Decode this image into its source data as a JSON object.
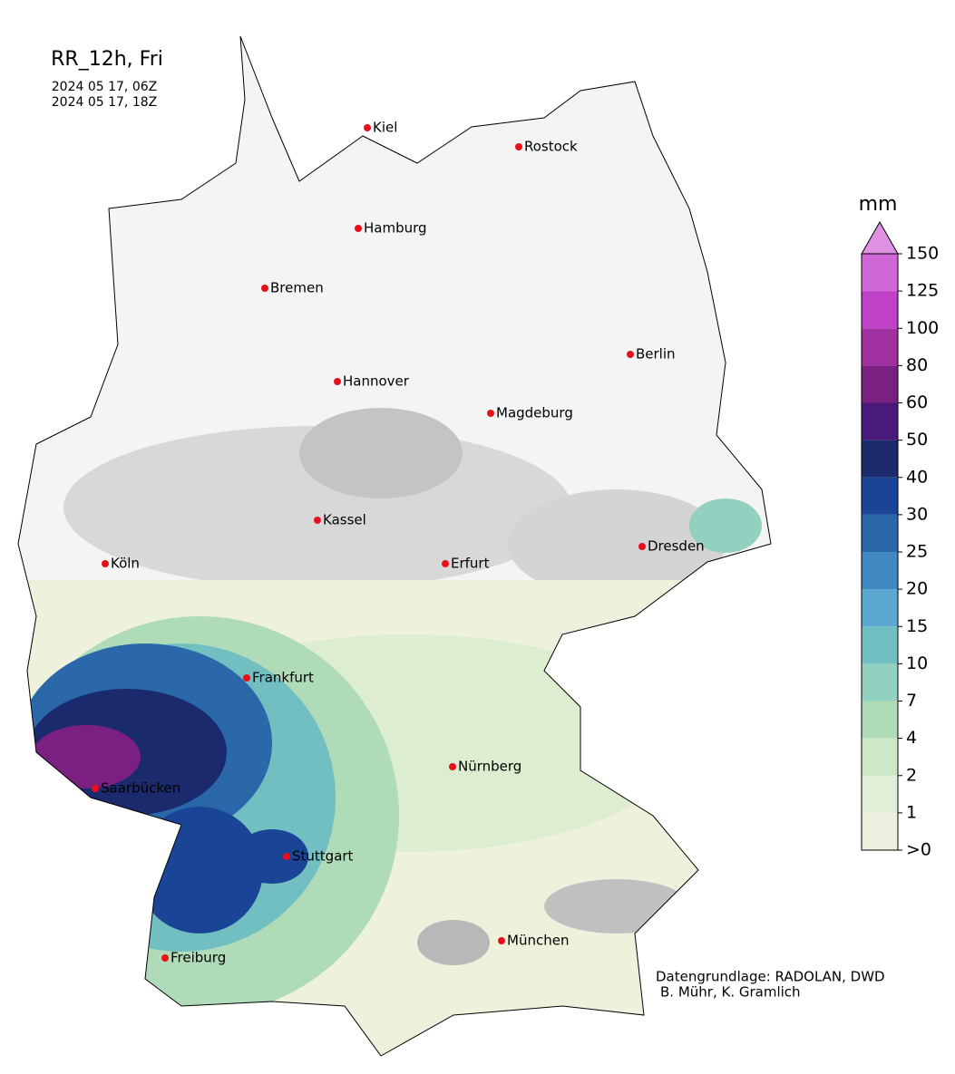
{
  "header": {
    "title": "RR_12h, Fri",
    "start": "2024 05 17, 06Z",
    "end": "2024 05 17, 18Z"
  },
  "cities": [
    "Kiel",
    "Rostock",
    "Hamburg",
    "Bremen",
    "Berlin",
    "Hannover",
    "Magdeburg",
    "Kassel",
    "Köln",
    "Erfurt",
    "Dresden",
    "Frankfurt",
    "Nürnberg",
    "Saarbücken",
    "Stuttgart",
    "Freiburg",
    "München"
  ],
  "colorbar": {
    "unit": "mm",
    "ticks": [
      {
        "value": 0,
        "label": ">0"
      },
      1,
      2,
      4,
      7,
      10,
      15,
      20,
      25,
      30,
      40,
      50,
      60,
      80,
      100,
      125,
      150
    ],
    "colors": [
      "#f0f0e0",
      "#e0efd8",
      "#cce8c5",
      "#b0dbb8",
      "#92d0c0",
      "#72bfc2",
      "#5aa8cf",
      "#4189c0",
      "#2a68aa",
      "#1a4495",
      "#1a2a6c",
      "#4a1a7a",
      "#7a2080",
      "#a030a0",
      "#c040c8",
      "#d068d8"
    ],
    "extend_color": "#e090e0"
  },
  "credits": [
    "Datengrundlage: RADOLAN, DWD",
    "B. Mühr, K. Gramlich"
  ]
}
